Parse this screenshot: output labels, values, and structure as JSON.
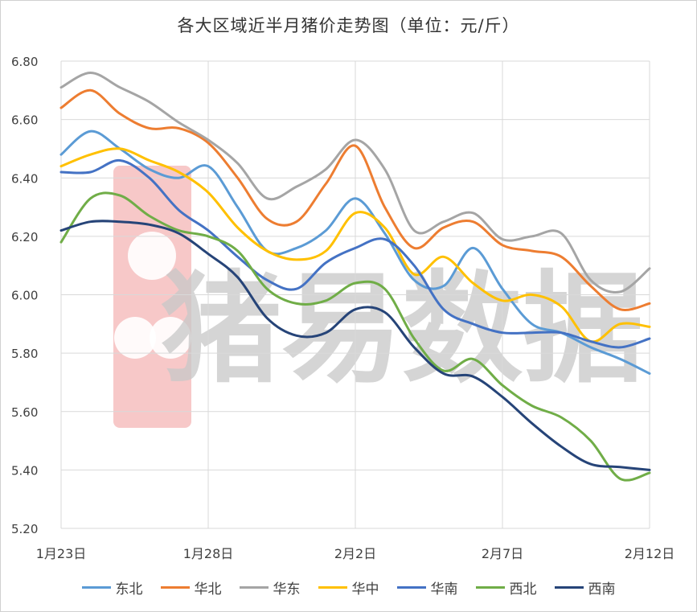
{
  "chart_data": {
    "type": "line",
    "title": "各大区域近半月猪价走势图（单位：元/斤）",
    "xlabel": "",
    "ylabel": "",
    "ylim": [
      5.2,
      6.8
    ],
    "yticks": [
      "5.20",
      "5.40",
      "5.60",
      "5.80",
      "6.00",
      "6.20",
      "6.40",
      "6.60",
      "6.80"
    ],
    "xtick_labels": [
      "1月23日",
      "1月28日",
      "2月2日",
      "2月7日",
      "2月12日"
    ],
    "x": [
      "1月23日",
      "1月24日",
      "1月25日",
      "1月26日",
      "1月27日",
      "1月28日",
      "1月29日",
      "1月30日",
      "1月31日",
      "2月1日",
      "2月2日",
      "2月3日",
      "2月4日",
      "2月5日",
      "2月6日",
      "2月7日",
      "2月8日",
      "2月9日",
      "2月10日",
      "2月11日",
      "2月12日"
    ],
    "grid": true,
    "legend_position": "bottom",
    "series": [
      {
        "name": "东北",
        "color": "#5b9bd5",
        "values": [
          6.48,
          6.56,
          6.5,
          6.43,
          6.4,
          6.44,
          6.3,
          6.15,
          6.16,
          6.22,
          6.33,
          6.21,
          6.05,
          6.03,
          6.16,
          6.02,
          5.9,
          5.87,
          5.82,
          5.78,
          5.73
        ]
      },
      {
        "name": "华北",
        "color": "#ed7d31",
        "values": [
          6.64,
          6.7,
          6.62,
          6.57,
          6.57,
          6.52,
          6.4,
          6.26,
          6.25,
          6.38,
          6.51,
          6.3,
          6.16,
          6.23,
          6.25,
          6.17,
          6.15,
          6.13,
          6.03,
          5.95,
          5.97
        ]
      },
      {
        "name": "华东",
        "color": "#a5a5a5",
        "values": [
          6.71,
          6.76,
          6.71,
          6.66,
          6.59,
          6.53,
          6.45,
          6.33,
          6.37,
          6.43,
          6.53,
          6.43,
          6.22,
          6.25,
          6.28,
          6.19,
          6.2,
          6.21,
          6.05,
          6.01,
          6.09
        ]
      },
      {
        "name": "华中",
        "color": "#ffc000",
        "values": [
          6.44,
          6.48,
          6.5,
          6.46,
          6.42,
          6.35,
          6.23,
          6.15,
          6.12,
          6.15,
          6.28,
          6.23,
          6.07,
          6.13,
          6.04,
          5.98,
          6.0,
          5.96,
          5.84,
          5.9,
          5.89
        ]
      },
      {
        "name": "华南",
        "color": "#4472c4",
        "values": [
          6.42,
          6.42,
          6.46,
          6.4,
          6.29,
          6.22,
          6.13,
          6.05,
          6.02,
          6.11,
          6.16,
          6.19,
          6.1,
          5.95,
          5.9,
          5.87,
          5.87,
          5.87,
          5.84,
          5.82,
          5.85
        ]
      },
      {
        "name": "西北",
        "color": "#70ad47",
        "values": [
          6.18,
          6.33,
          6.34,
          6.27,
          6.22,
          6.2,
          6.15,
          6.02,
          5.97,
          5.98,
          6.04,
          6.02,
          5.85,
          5.74,
          5.78,
          5.69,
          5.62,
          5.58,
          5.5,
          5.37,
          5.39
        ]
      },
      {
        "name": "西南",
        "color": "#264478",
        "values": [
          6.22,
          6.25,
          6.25,
          6.24,
          6.21,
          6.14,
          6.06,
          5.92,
          5.86,
          5.87,
          5.95,
          5.94,
          5.82,
          5.73,
          5.72,
          5.65,
          5.56,
          5.48,
          5.42,
          5.41,
          5.4
        ]
      }
    ]
  },
  "watermark": {
    "text": "猪易数据"
  }
}
